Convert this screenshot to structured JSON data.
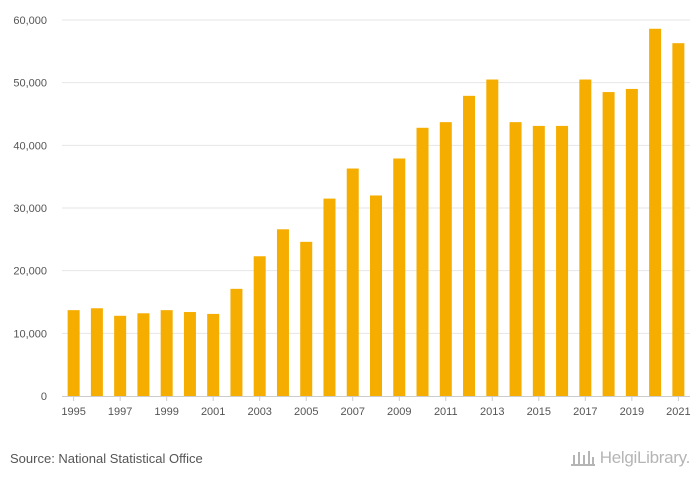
{
  "chart_data": {
    "type": "bar",
    "title": "",
    "xlabel": "",
    "ylabel": "",
    "ylim": [
      0,
      60000
    ],
    "y_ticks": [
      "0",
      "10,000",
      "20,000",
      "30,000",
      "40,000",
      "50,000",
      "60,000"
    ],
    "y_tick_values": [
      0,
      10000,
      20000,
      30000,
      40000,
      50000,
      60000
    ],
    "categories": [
      "1995",
      "1996",
      "1997",
      "1998",
      "1999",
      "2000",
      "2001",
      "2002",
      "2003",
      "2004",
      "2005",
      "2006",
      "2007",
      "2008",
      "2009",
      "2010",
      "2011",
      "2012",
      "2013",
      "2014",
      "2015",
      "2016",
      "2017",
      "2018",
      "2019",
      "2020",
      "2021"
    ],
    "x_tick_labels": [
      "1995",
      "1997",
      "1999",
      "2001",
      "2003",
      "2005",
      "2007",
      "2009",
      "2011",
      "2013",
      "2015",
      "2017",
      "2019",
      "2021"
    ],
    "values": [
      13700,
      14000,
      12800,
      13200,
      13700,
      13400,
      13100,
      17100,
      22300,
      26600,
      24600,
      31500,
      36300,
      32000,
      37900,
      42800,
      43700,
      47900,
      50500,
      43700,
      43100,
      43100,
      50500,
      48500,
      49000,
      58600,
      56300
    ],
    "bar_color": "#f5ad00",
    "grid": true
  },
  "footer": {
    "source": "Source: National Statistical Office",
    "brand": "HelgiLibrary."
  },
  "colors": {
    "bar": "#f5ad00",
    "grid": "#e6e6e6",
    "axis_text": "#555555",
    "brand": "#b5b5b5"
  }
}
